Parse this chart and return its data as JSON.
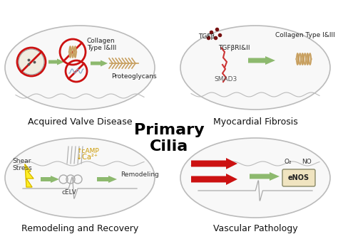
{
  "title": "Primary\nCilia",
  "title_fontsize": 16,
  "title_color": "#000000",
  "title_weight": "bold",
  "bg_color": "#ffffff",
  "ellipse_color": "#bbbbbb",
  "arrow_green": "#8db96e",
  "arrow_red": "#cc1111",
  "labels": {
    "top_left": "Acquired Valve Disease",
    "top_right": "Myocardial Fibrosis",
    "bottom_left": "Remodeling and Recovery",
    "bottom_right": "Vascular Pathology"
  },
  "label_fontsize": 9,
  "sub_labels": {
    "collagen_top": "Collagen\nType I&III",
    "proteoglycans": "Proteoglycans",
    "tgfb": "TGFβ",
    "tgfbri": "TGFβRI&II",
    "smad3": "SMAD3",
    "collagen_tr": "Collagen Type I&III",
    "shear_stress": "Shear\nStress",
    "camp": "↑cAMP",
    "ca2": "↓Ca²⁺",
    "celv": "cELV",
    "remodeling": "Remodeling",
    "o2": "O₂",
    "no": "NO",
    "enos": "eNOS"
  },
  "sub_label_fontsize": 6.5
}
